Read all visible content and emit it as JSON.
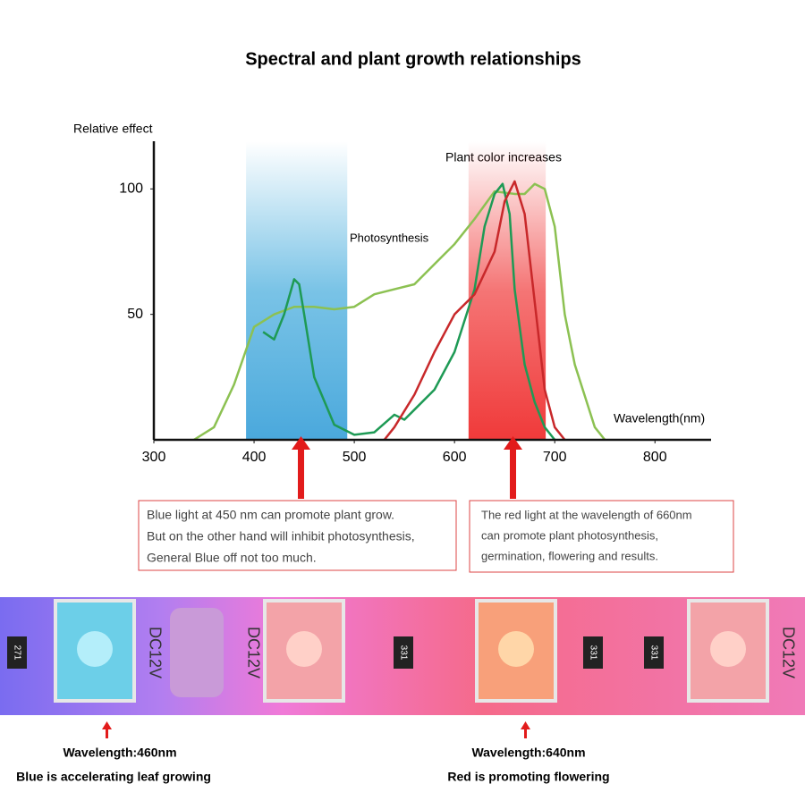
{
  "chart_data": {
    "type": "line",
    "title": "Spectral and plant growth relationships",
    "y_label": "Relative effect",
    "x_label": "Wavelength(nm)",
    "annotations": [
      "Photosynthesis",
      "Plant color increases"
    ],
    "xlim": [
      300,
      856
    ],
    "ylim": [
      0,
      119
    ],
    "xticks": [
      300,
      400,
      500,
      600,
      700,
      800
    ],
    "yticks": [
      50,
      100
    ],
    "bands": [
      {
        "range": [
          392,
          493
        ],
        "color": "#58b4e0"
      },
      {
        "range": [
          614,
          691
        ],
        "color": "#f03a3a"
      }
    ],
    "series": [
      {
        "color": "#8cc152",
        "x": [
          340,
          360,
          380,
          400,
          420,
          440,
          460,
          480,
          500,
          520,
          540,
          560,
          580,
          600,
          620,
          640,
          660,
          670,
          680,
          690,
          700,
          710,
          720,
          740,
          750
        ],
        "values": [
          0,
          5,
          22,
          45,
          50,
          53,
          53,
          52,
          53,
          58,
          60,
          62,
          70,
          78,
          88,
          99,
          98,
          98,
          102,
          100,
          85,
          50,
          30,
          5,
          0
        ]
      },
      {
        "color": "#1e9a55",
        "x": [
          409,
          420,
          430,
          440,
          445,
          450,
          460,
          480,
          500,
          520,
          540,
          550,
          560,
          580,
          600,
          620,
          630,
          640,
          648,
          655,
          660,
          670,
          680,
          690,
          700
        ],
        "values": [
          43,
          40,
          50,
          64,
          62,
          50,
          25,
          6,
          2,
          3,
          10,
          8,
          12,
          20,
          35,
          60,
          85,
          98,
          102,
          90,
          60,
          30,
          15,
          5,
          0
        ]
      },
      {
        "color": "#c8282a",
        "x": [
          530,
          540,
          560,
          580,
          600,
          620,
          640,
          650,
          660,
          670,
          680,
          690,
          700,
          710
        ],
        "values": [
          0,
          5,
          18,
          35,
          50,
          58,
          75,
          95,
          103,
          90,
          55,
          20,
          5,
          0
        ]
      }
    ]
  },
  "boxes": [
    [
      "Blue light at 450 nm can promote plant grow.",
      "But on the other hand will inhibit photosynthesis,",
      "General Blue off not too much."
    ],
    [
      "The red light at the wavelength of 660nm",
      "can promote plant photosynthesis,",
      "germination, flowering and results."
    ]
  ],
  "strip_labels": [
    "271",
    "DC12V",
    "DC12V",
    "331",
    "331",
    "331",
    "DC12V"
  ],
  "captions": [
    {
      "wavelength": "Wavelength:460nm",
      "text": "Blue is accelerating leaf growing"
    },
    {
      "wavelength": "Wavelength:640nm",
      "text": "Red is promoting flowering"
    }
  ]
}
